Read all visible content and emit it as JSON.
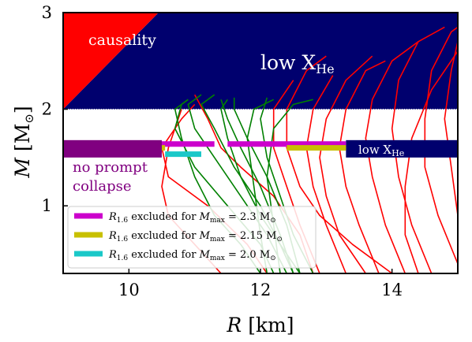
{
  "chart_data": {
    "type": "line",
    "xlabel_var": "R",
    "xlabel_unit": "[km]",
    "ylabel_var": "M",
    "ylabel_unit": "[M",
    "ylabel_unit_sub": "⊙",
    "ylabel_unit_close": "]",
    "xlim": [
      9.0,
      15.0
    ],
    "ylim": [
      0.3,
      3.0
    ],
    "x_ticks": [
      10,
      12,
      14
    ],
    "y_ticks": [
      1,
      2,
      3
    ],
    "y_line": 2.0,
    "regions": {
      "causality": {
        "label": "causality",
        "color": "#ff0000",
        "polygon": [
          [
            9.0,
            2.0
          ],
          [
            9.0,
            3.0
          ],
          [
            10.45,
            3.0
          ]
        ]
      },
      "low_xhe_top": {
        "label_main": "low X",
        "label_sub": "He",
        "color": "#00006e",
        "polygon": [
          [
            9.0,
            2.0
          ],
          [
            10.45,
            3.0
          ],
          [
            15.0,
            3.0
          ],
          [
            15.0,
            2.0
          ]
        ]
      },
      "no_prompt_collapse": {
        "label_line1": "no prompt",
        "label_line2": "collapse",
        "color": "#800080",
        "x_range": [
          9.0,
          10.5
        ],
        "m_range": [
          1.5,
          1.68
        ]
      },
      "low_xhe_band": {
        "label_main": "low X",
        "label_sub": "He",
        "color": "#00006e",
        "x_range": [
          13.3,
          15.0
        ],
        "m_range": [
          1.5,
          1.68
        ]
      }
    },
    "exclusion_bars": [
      {
        "color": "#cc00cc",
        "m": 1.64,
        "segments": [
          [
            10.5,
            11.3
          ],
          [
            11.5,
            13.3
          ]
        ]
      },
      {
        "color": "#c8c000",
        "m": 1.6,
        "segments": [
          [
            10.5,
            10.55
          ],
          [
            12.4,
            13.3
          ]
        ]
      },
      {
        "color": "#1ac8c8",
        "m": 1.535,
        "segments": [
          [
            10.55,
            11.1
          ]
        ]
      }
    ],
    "legend": [
      {
        "color": "#cc00cc",
        "var": "R",
        "var_sub": "1.6",
        "text": " excluded for ",
        "mvar": "M",
        "mvar_sub": "max",
        "value": " = 2.3 M",
        "unit_sub": "⊙"
      },
      {
        "color": "#c8c000",
        "var": "R",
        "var_sub": "1.6",
        "text": " excluded for ",
        "mvar": "M",
        "mvar_sub": "max",
        "value": " = 2.15 M",
        "unit_sub": "⊙"
      },
      {
        "color": "#1ac8c8",
        "var": "R",
        "var_sub": "1.6",
        "text": " excluded for ",
        "mvar": "M",
        "mvar_sub": "max",
        "value": " = 2.0 M",
        "unit_sub": "⊙"
      }
    ],
    "series": [
      {
        "color": "#ff0000",
        "values": [
          [
            12.1,
            0.3
          ],
          [
            11.8,
            0.6
          ],
          [
            11.2,
            1.0
          ],
          [
            10.6,
            1.3
          ],
          [
            10.5,
            1.6
          ],
          [
            10.8,
            1.9
          ],
          [
            11.0,
            2.05
          ]
        ]
      },
      {
        "color": "#ff0000",
        "values": [
          [
            12.8,
            0.3
          ],
          [
            12.6,
            0.7
          ],
          [
            12.2,
            1.1
          ],
          [
            11.7,
            1.4
          ],
          [
            11.4,
            1.6
          ],
          [
            11.2,
            1.9
          ],
          [
            11.0,
            2.15
          ]
        ]
      },
      {
        "color": "#ff0000",
        "values": [
          [
            12.9,
            0.3
          ],
          [
            12.6,
            0.8
          ],
          [
            12.4,
            1.2
          ],
          [
            12.2,
            1.6
          ],
          [
            12.2,
            2.0
          ],
          [
            12.5,
            2.3
          ]
        ]
      },
      {
        "color": "#ff0000",
        "values": [
          [
            13.3,
            0.3
          ],
          [
            13.0,
            0.8
          ],
          [
            12.8,
            1.2
          ],
          [
            12.7,
            1.6
          ],
          [
            12.8,
            2.0
          ],
          [
            13.1,
            2.35
          ]
        ]
      },
      {
        "color": "#ff0000",
        "values": [
          [
            13.8,
            0.3
          ],
          [
            13.5,
            0.8
          ],
          [
            13.3,
            1.2
          ],
          [
            13.2,
            1.6
          ],
          [
            13.3,
            2.0
          ],
          [
            13.6,
            2.4
          ],
          [
            13.9,
            2.5
          ]
        ]
      },
      {
        "color": "#ff0000",
        "values": [
          [
            14.2,
            0.3
          ],
          [
            13.9,
            0.8
          ],
          [
            13.7,
            1.3
          ],
          [
            13.6,
            1.7
          ],
          [
            13.7,
            2.1
          ],
          [
            14.0,
            2.5
          ],
          [
            14.4,
            2.7
          ]
        ]
      },
      {
        "color": "#ff0000",
        "values": [
          [
            14.6,
            0.3
          ],
          [
            14.3,
            0.8
          ],
          [
            14.1,
            1.3
          ],
          [
            14.0,
            1.8
          ],
          [
            14.1,
            2.3
          ],
          [
            14.4,
            2.7
          ],
          [
            14.8,
            2.85
          ]
        ]
      },
      {
        "color": "#ff0000",
        "values": [
          [
            15.0,
            0.4
          ],
          [
            14.7,
            0.9
          ],
          [
            14.5,
            1.4
          ],
          [
            14.5,
            1.9
          ],
          [
            14.6,
            2.4
          ],
          [
            14.9,
            2.8
          ],
          [
            15.0,
            2.85
          ]
        ]
      },
      {
        "color": "#ff0000",
        "values": [
          [
            15.0,
            0.9
          ],
          [
            14.9,
            1.4
          ],
          [
            14.8,
            1.9
          ],
          [
            14.9,
            2.4
          ],
          [
            15.0,
            2.7
          ]
        ]
      },
      {
        "color": "#ff0000",
        "values": [
          [
            14.0,
            0.3
          ],
          [
            13.4,
            0.6
          ],
          [
            12.9,
            0.9
          ],
          [
            12.6,
            1.2
          ],
          [
            12.4,
            1.6
          ],
          [
            12.4,
            2.0
          ],
          [
            12.7,
            2.4
          ],
          [
            13.0,
            2.55
          ]
        ]
      },
      {
        "color": "#ff0000",
        "values": [
          [
            13.6,
            0.3
          ],
          [
            13.2,
            0.7
          ],
          [
            13.0,
            1.1
          ],
          [
            12.9,
            1.5
          ],
          [
            13.0,
            1.9
          ],
          [
            13.3,
            2.3
          ],
          [
            13.7,
            2.55
          ]
        ]
      },
      {
        "color": "#ff0000",
        "values": [
          [
            14.4,
            0.3
          ],
          [
            14.2,
            0.7
          ],
          [
            14.2,
            1.2
          ],
          [
            14.3,
            1.7
          ],
          [
            14.6,
            2.2
          ],
          [
            15.0,
            2.6
          ]
        ]
      },
      {
        "color": "#ff0000",
        "values": [
          [
            11.4,
            0.3
          ],
          [
            11.0,
            0.6
          ],
          [
            10.6,
            0.9
          ],
          [
            10.5,
            1.2
          ],
          [
            10.6,
            1.6
          ],
          [
            10.8,
            2.0
          ]
        ]
      },
      {
        "color": "#008000",
        "values": [
          [
            12.2,
            0.3
          ],
          [
            12.0,
            0.6
          ],
          [
            11.5,
            1.0
          ],
          [
            11.0,
            1.4
          ],
          [
            10.7,
            1.8
          ],
          [
            10.8,
            2.05
          ],
          [
            10.9,
            2.1
          ]
        ]
      },
      {
        "color": "#008000",
        "values": [
          [
            12.4,
            0.3
          ],
          [
            12.1,
            0.7
          ],
          [
            11.7,
            1.1
          ],
          [
            11.3,
            1.5
          ],
          [
            11.0,
            1.8
          ],
          [
            10.9,
            2.05
          ],
          [
            11.1,
            2.15
          ]
        ]
      },
      {
        "color": "#008000",
        "values": [
          [
            12.5,
            0.3
          ],
          [
            12.3,
            0.7
          ],
          [
            12.0,
            1.2
          ],
          [
            11.7,
            1.6
          ],
          [
            11.5,
            1.9
          ],
          [
            11.4,
            2.1
          ]
        ]
      },
      {
        "color": "#008000",
        "values": [
          [
            12.6,
            0.3
          ],
          [
            12.4,
            0.8
          ],
          [
            12.1,
            1.3
          ],
          [
            11.8,
            1.7
          ],
          [
            11.6,
            2.0
          ],
          [
            11.6,
            2.12
          ]
        ]
      },
      {
        "color": "#008000",
        "values": [
          [
            12.1,
            0.3
          ],
          [
            12.0,
            0.7
          ],
          [
            11.9,
            1.2
          ],
          [
            11.8,
            1.7
          ],
          [
            11.9,
            2.0
          ],
          [
            12.2,
            2.1
          ]
        ]
      },
      {
        "color": "#008000",
        "values": [
          [
            12.8,
            0.3
          ],
          [
            12.5,
            0.7
          ],
          [
            12.3,
            1.1
          ],
          [
            12.1,
            1.5
          ],
          [
            12.0,
            1.9
          ],
          [
            12.1,
            2.12
          ]
        ]
      },
      {
        "color": "#008000",
        "values": [
          [
            12.0,
            0.3
          ],
          [
            11.7,
            0.6
          ],
          [
            11.3,
            0.9
          ],
          [
            11.0,
            1.3
          ],
          [
            10.8,
            1.7
          ],
          [
            10.7,
            2.0
          ],
          [
            10.9,
            2.1
          ]
        ]
      },
      {
        "color": "#008000",
        "values": [
          [
            12.6,
            0.3
          ],
          [
            12.3,
            0.6
          ],
          [
            12.0,
            0.9
          ],
          [
            11.7,
            1.3
          ],
          [
            11.5,
            1.7
          ],
          [
            11.4,
            2.0
          ],
          [
            11.5,
            2.1
          ]
        ]
      },
      {
        "color": "#008000",
        "values": [
          [
            12.3,
            0.3
          ],
          [
            12.2,
            0.8
          ],
          [
            12.1,
            1.3
          ],
          [
            12.2,
            1.8
          ],
          [
            12.5,
            2.05
          ],
          [
            12.8,
            2.1
          ]
        ]
      },
      {
        "color": "#008000",
        "values": [
          [
            12.5,
            0.3
          ],
          [
            12.3,
            0.6
          ],
          [
            12.0,
            1.0
          ],
          [
            11.6,
            1.4
          ],
          [
            11.3,
            1.8
          ],
          [
            11.1,
            2.05
          ],
          [
            11.3,
            2.15
          ]
        ]
      }
    ]
  }
}
